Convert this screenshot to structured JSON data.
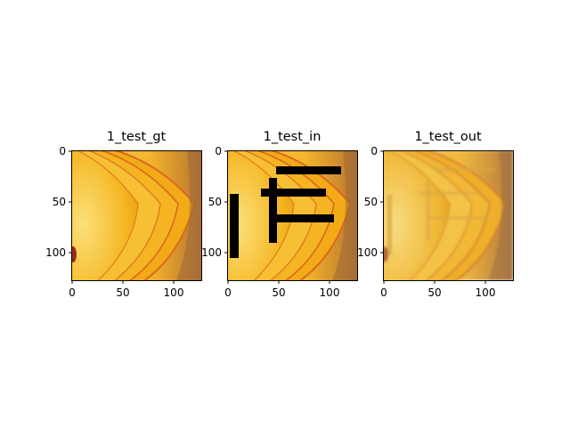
{
  "figure": {
    "panels": [
      {
        "id": "gt",
        "title": "1_test_gt",
        "x_ticks": [
          "0",
          "50",
          "100"
        ],
        "y_ticks": [
          "0",
          "50",
          "100"
        ]
      },
      {
        "id": "in",
        "title": "1_test_in",
        "x_ticks": [
          "0",
          "50",
          "100"
        ],
        "y_ticks": [
          "0",
          "50",
          "100"
        ]
      },
      {
        "id": "out",
        "title": "1_test_out",
        "x_ticks": [
          "0",
          "50",
          "100"
        ],
        "y_ticks": [
          "0",
          "50",
          "100"
        ]
      }
    ],
    "image_extent": [
      0,
      128
    ],
    "tick_values": [
      0,
      50,
      100
    ],
    "colors": {
      "background": "#ffffff",
      "peach_light": "#f7c548",
      "peach_mid": "#f2a91a",
      "peach_edge": "#d9691e",
      "mask": "#000000"
    }
  }
}
